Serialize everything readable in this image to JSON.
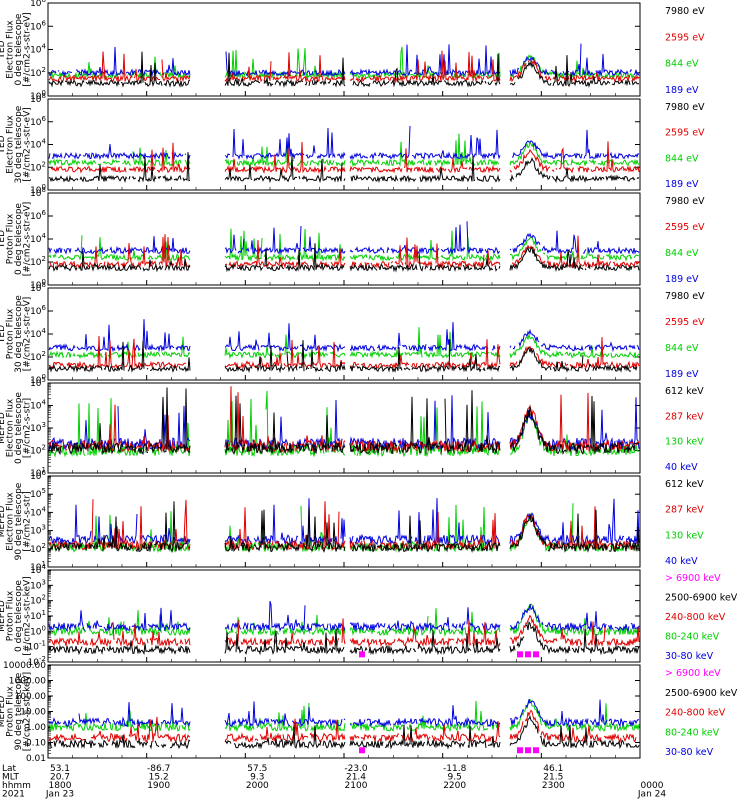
{
  "colors": {
    "black": "#000000",
    "red": "#e00000",
    "green": "#00d000",
    "blue": "#0000e0",
    "magenta": "#ff00ff"
  },
  "footer": {
    "rows": [
      {
        "label": "Lat",
        "values": [
          "53.1",
          "-86.7",
          "57.5",
          "-23.0",
          "-11.8",
          "46.1",
          ""
        ]
      },
      {
        "label": "MLT",
        "values": [
          "20.7",
          "15.2",
          "9.3",
          "21.4",
          "9.5",
          "21.5",
          ""
        ]
      },
      {
        "label": "hhmm",
        "values": [
          "1800",
          "1900",
          "2000",
          "2100",
          "2200",
          "2300",
          "0000"
        ]
      },
      {
        "label": "2021",
        "values": [
          "Jan 23",
          "",
          "",
          "",
          "",
          "",
          "Jan 24"
        ]
      }
    ]
  },
  "chart_data": [
    {
      "type": "line",
      "yscale": "log",
      "ylim": [
        1,
        100000000
      ],
      "ylabel_lines": [
        "TED",
        "Electron Flux",
        "0 deg telescope",
        "[#/cm2-s-str-eV]"
      ],
      "ytick_labels": [
        "10^0",
        "10^2",
        "10^4",
        "10^6",
        "10^8"
      ],
      "legend": [
        {
          "label": "7980 eV",
          "color": "black"
        },
        {
          "label": "2595 eV",
          "color": "red"
        },
        {
          "label": "844 eV",
          "color": "green"
        },
        {
          "label": "189 eV",
          "color": "blue"
        }
      ],
      "series_levels": {
        "blue": 2.0,
        "green": 1.8,
        "red": 1.5,
        "black": 1.1
      }
    },
    {
      "type": "line",
      "yscale": "log",
      "ylim": [
        1,
        100000000
      ],
      "ylabel_lines": [
        "TED",
        "Electron Flux",
        "30 deg telescope",
        "[#/cm2-s-str-eV]"
      ],
      "ytick_labels": [
        "10^0",
        "10^2",
        "10^4",
        "10^6",
        "10^8"
      ],
      "legend": [
        {
          "label": "7980 eV",
          "color": "black"
        },
        {
          "label": "2595 eV",
          "color": "red"
        },
        {
          "label": "844 eV",
          "color": "green"
        },
        {
          "label": "189 eV",
          "color": "blue"
        }
      ],
      "series_levels": {
        "blue": 3.0,
        "green": 2.4,
        "red": 1.8,
        "black": 1.0
      }
    },
    {
      "type": "line",
      "yscale": "log",
      "ylim": [
        1,
        100000000
      ],
      "ylabel_lines": [
        "TED",
        "Proton Flux",
        "0 deg telescope",
        "[#/cm2-s-str-eV]"
      ],
      "ytick_labels": [
        "10^0",
        "10^2",
        "10^4",
        "10^6",
        "10^8"
      ],
      "legend": [
        {
          "label": "7980 eV",
          "color": "black"
        },
        {
          "label": "2595 eV",
          "color": "red"
        },
        {
          "label": "844 eV",
          "color": "green"
        },
        {
          "label": "189 eV",
          "color": "blue"
        }
      ],
      "series_levels": {
        "blue": 3.0,
        "green": 2.4,
        "red": 1.8,
        "black": 1.5
      }
    },
    {
      "type": "line",
      "yscale": "log",
      "ylim": [
        1,
        100000000
      ],
      "ylabel_lines": [
        "TED",
        "Proton Flux",
        "30 deg telescope",
        "[#/cm2-s-str-eV]"
      ],
      "ytick_labels": [
        "10^0",
        "10^2",
        "10^4",
        "10^6",
        "10^8"
      ],
      "legend": [
        {
          "label": "7980 eV",
          "color": "black"
        },
        {
          "label": "2595 eV",
          "color": "red"
        },
        {
          "label": "844 eV",
          "color": "green"
        },
        {
          "label": "189 eV",
          "color": "blue"
        }
      ],
      "series_levels": {
        "blue": 2.8,
        "green": 2.2,
        "red": 1.3,
        "black": 1.0
      }
    },
    {
      "type": "line",
      "yscale": "log",
      "ylim": [
        10,
        100000
      ],
      "ylabel_lines": [
        "MEPED",
        "Electron Flux",
        "0 deg telescope",
        "[#/cm2-s-str]"
      ],
      "ytick_labels": [
        "10^1",
        "10^2",
        "10^3",
        "10^4",
        "10^5"
      ],
      "legend": [
        {
          "label": "612 keV",
          "color": "black"
        },
        {
          "label": "287 keV",
          "color": "red"
        },
        {
          "label": "130 keV",
          "color": "green"
        },
        {
          "label": "40 keV",
          "color": "blue"
        }
      ],
      "series_levels": {
        "blue": 2.3,
        "green": 2.0,
        "red": 2.2,
        "black": 2.1
      }
    },
    {
      "type": "line",
      "yscale": "log",
      "ylim": [
        10,
        1000000
      ],
      "ylabel_lines": [
        "MEPED",
        "Electron Flux",
        "90 deg telescope",
        "[#/cm2-s-str]"
      ],
      "ytick_labels": [
        "10^1",
        "10^2",
        "10^3",
        "10^4",
        "10^5",
        "10^6"
      ],
      "legend": [
        {
          "label": "612 keV",
          "color": "black"
        },
        {
          "label": "287 keV",
          "color": "red"
        },
        {
          "label": "130 keV",
          "color": "green"
        },
        {
          "label": "40 keV",
          "color": "blue"
        }
      ],
      "series_levels": {
        "blue": 2.5,
        "green": 2.1,
        "red": 2.2,
        "black": 2.1
      }
    },
    {
      "type": "line",
      "yscale": "log",
      "ylim": [
        0.01,
        10000
      ],
      "ylabel_lines": [
        "MEPED",
        "Proton Flux",
        "0 deg telescope",
        "[#/cm2-s-str-keV]"
      ],
      "ytick_labels": [
        "10^-2",
        "10^-1",
        "10^0",
        "10^1",
        "10^2",
        "10^3",
        "10^4"
      ],
      "legend": [
        {
          "label": "> 6900 keV",
          "color": "magenta"
        },
        {
          "label": "2500-6900 keV",
          "color": "black"
        },
        {
          "label": "240-800 keV",
          "color": "red"
        },
        {
          "label": "80-240 keV",
          "color": "green"
        },
        {
          "label": "30-80 keV",
          "color": "blue"
        }
      ],
      "series_levels": {
        "blue": 0.3,
        "green": 0.0,
        "red": -0.7,
        "black": -1.2
      }
    },
    {
      "type": "line",
      "yscale": "log",
      "ylim": [
        0.01,
        10000
      ],
      "ylabel_lines": [
        "MEPED",
        "Proton Flux",
        "90 deg telescope",
        "[#/cm2-s-str-keV]"
      ],
      "ytick_labels": [
        "0.01",
        "0.10",
        "1.00",
        "10.00",
        "100.00",
        "1000.00",
        "10000.00"
      ],
      "legend": [
        {
          "label": "> 6900 keV",
          "color": "magenta"
        },
        {
          "label": "2500-6900 keV",
          "color": "black"
        },
        {
          "label": "240-800 keV",
          "color": "red"
        },
        {
          "label": "80-240 keV",
          "color": "green"
        },
        {
          "label": "30-80 keV",
          "color": "blue"
        }
      ],
      "series_levels": {
        "blue": 0.3,
        "green": 0.0,
        "red": -0.7,
        "black": -1.1
      }
    }
  ]
}
